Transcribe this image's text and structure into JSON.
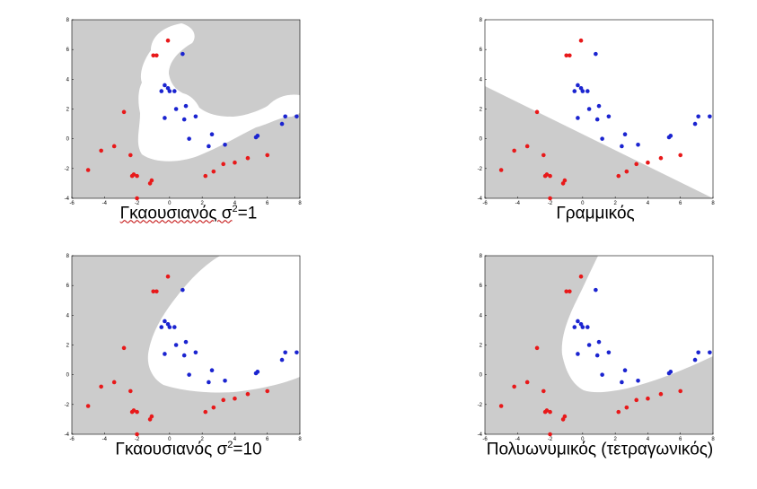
{
  "colors": {
    "region": "#cccccc",
    "class_a": "#e8191a",
    "class_b": "#1b24d0",
    "axis": "#000000"
  },
  "captions": [
    {
      "kernel": "Γκαουσιανός σ",
      "exp": "2",
      "rest": "=1"
    },
    {
      "kernel": "Γραμμικός",
      "exp": "",
      "rest": ""
    },
    {
      "kernel": "Γκαουσιανός σ",
      "exp": "2",
      "rest": "=10"
    },
    {
      "kernel": "Πολυωνυμικός (τετραγωνικός)",
      "exp": "",
      "rest": ""
    }
  ],
  "chart_data": [
    {
      "type": "scatter",
      "title": "",
      "xlabel": "",
      "ylabel": "",
      "xlim": [
        -6,
        8
      ],
      "ylim": [
        -4,
        8
      ],
      "xticks": [
        -6,
        -4,
        -2,
        0,
        2,
        4,
        6,
        8
      ],
      "yticks": [
        -4,
        -2,
        0,
        2,
        4,
        6,
        8
      ],
      "decision_boundary": "Gaussian kernel σ²=1: white region is the blue class",
      "series": [
        {
          "class": "red",
          "color": "#e8191a",
          "points": [
            [
              -0.1,
              6.6
            ],
            [
              -1.0,
              5.6
            ],
            [
              -0.8,
              5.6
            ],
            [
              -2.8,
              1.8
            ],
            [
              -5.0,
              -2.1
            ],
            [
              -4.2,
              -0.8
            ],
            [
              -3.4,
              -0.5
            ],
            [
              -2.4,
              -1.1
            ],
            [
              -2.0,
              -2.5
            ],
            [
              -2.2,
              -2.4
            ],
            [
              -2.3,
              -2.5
            ],
            [
              -1.1,
              -2.8
            ],
            [
              -1.2,
              -3.0
            ],
            [
              -2.0,
              -4.0
            ],
            [
              2.2,
              -2.5
            ],
            [
              2.7,
              -2.2
            ],
            [
              3.3,
              -1.7
            ],
            [
              4.0,
              -1.6
            ],
            [
              4.8,
              -1.3
            ],
            [
              6.0,
              -1.1
            ]
          ]
        },
        {
          "class": "blue",
          "color": "#1b24d0",
          "points": [
            [
              0.8,
              5.7
            ],
            [
              -0.3,
              3.6
            ],
            [
              -0.1,
              3.4
            ],
            [
              -0.5,
              3.2
            ],
            [
              0.3,
              3.2
            ],
            [
              0.0,
              3.2
            ],
            [
              1.0,
              2.2
            ],
            [
              0.4,
              2.0
            ],
            [
              -0.3,
              1.4
            ],
            [
              1.6,
              1.5
            ],
            [
              0.9,
              1.3
            ],
            [
              1.2,
              0.0
            ],
            [
              2.6,
              0.3
            ],
            [
              2.4,
              -0.5
            ],
            [
              3.4,
              -0.4
            ],
            [
              5.4,
              0.2
            ],
            [
              5.3,
              0.1
            ],
            [
              7.1,
              1.5
            ],
            [
              6.9,
              1.0
            ],
            [
              7.8,
              1.5
            ]
          ]
        }
      ]
    },
    {
      "type": "scatter",
      "title": "",
      "xlabel": "",
      "ylabel": "",
      "xlim": [
        -6,
        8
      ],
      "ylim": [
        -4,
        8
      ],
      "xticks": [
        -6,
        -4,
        -2,
        0,
        2,
        4,
        6,
        8
      ],
      "yticks": [
        -4,
        -2,
        0,
        2,
        4,
        6,
        8
      ],
      "decision_boundary": "Linear kernel: straight line, grey region below",
      "series": [
        {
          "class": "red",
          "color": "#e8191a",
          "points": [
            [
              -0.1,
              6.6
            ],
            [
              -1.0,
              5.6
            ],
            [
              -0.8,
              5.6
            ],
            [
              -2.8,
              1.8
            ],
            [
              -5.0,
              -2.1
            ],
            [
              -4.2,
              -0.8
            ],
            [
              -3.4,
              -0.5
            ],
            [
              -2.4,
              -1.1
            ],
            [
              -2.0,
              -2.5
            ],
            [
              -2.2,
              -2.4
            ],
            [
              -2.3,
              -2.5
            ],
            [
              -1.1,
              -2.8
            ],
            [
              -1.2,
              -3.0
            ],
            [
              -2.0,
              -4.0
            ],
            [
              2.2,
              -2.5
            ],
            [
              2.7,
              -2.2
            ],
            [
              3.3,
              -1.7
            ],
            [
              4.0,
              -1.6
            ],
            [
              4.8,
              -1.3
            ],
            [
              6.0,
              -1.1
            ]
          ]
        },
        {
          "class": "blue",
          "color": "#1b24d0",
          "points": [
            [
              0.8,
              5.7
            ],
            [
              -0.3,
              3.6
            ],
            [
              -0.1,
              3.4
            ],
            [
              -0.5,
              3.2
            ],
            [
              0.3,
              3.2
            ],
            [
              0.0,
              3.2
            ],
            [
              1.0,
              2.2
            ],
            [
              0.4,
              2.0
            ],
            [
              -0.3,
              1.4
            ],
            [
              1.6,
              1.5
            ],
            [
              0.9,
              1.3
            ],
            [
              1.2,
              0.0
            ],
            [
              2.6,
              0.3
            ],
            [
              2.4,
              -0.5
            ],
            [
              3.4,
              -0.4
            ],
            [
              5.4,
              0.2
            ],
            [
              5.3,
              0.1
            ],
            [
              7.1,
              1.5
            ],
            [
              6.9,
              1.0
            ],
            [
              7.8,
              1.5
            ]
          ]
        }
      ]
    },
    {
      "type": "scatter",
      "title": "",
      "xlabel": "",
      "ylabel": "",
      "xlim": [
        -6,
        8
      ],
      "ylim": [
        -4,
        8
      ],
      "xticks": [
        -6,
        -4,
        -2,
        0,
        2,
        4,
        6,
        8
      ],
      "yticks": [
        -4,
        -2,
        0,
        2,
        4,
        6,
        8
      ],
      "decision_boundary": "Gaussian kernel σ²=10: smooth curved boundary, white region is the blue class",
      "series": [
        {
          "class": "red",
          "color": "#e8191a",
          "points": [
            [
              -0.1,
              6.6
            ],
            [
              -1.0,
              5.6
            ],
            [
              -0.8,
              5.6
            ],
            [
              -2.8,
              1.8
            ],
            [
              -5.0,
              -2.1
            ],
            [
              -4.2,
              -0.8
            ],
            [
              -3.4,
              -0.5
            ],
            [
              -2.4,
              -1.1
            ],
            [
              -2.0,
              -2.5
            ],
            [
              -2.2,
              -2.4
            ],
            [
              -2.3,
              -2.5
            ],
            [
              -1.1,
              -2.8
            ],
            [
              -1.2,
              -3.0
            ],
            [
              -2.0,
              -4.0
            ],
            [
              2.2,
              -2.5
            ],
            [
              2.7,
              -2.2
            ],
            [
              3.3,
              -1.7
            ],
            [
              4.0,
              -1.6
            ],
            [
              4.8,
              -1.3
            ],
            [
              6.0,
              -1.1
            ]
          ]
        },
        {
          "class": "blue",
          "color": "#1b24d0",
          "points": [
            [
              0.8,
              5.7
            ],
            [
              -0.3,
              3.6
            ],
            [
              -0.1,
              3.4
            ],
            [
              -0.5,
              3.2
            ],
            [
              0.3,
              3.2
            ],
            [
              0.0,
              3.2
            ],
            [
              1.0,
              2.2
            ],
            [
              0.4,
              2.0
            ],
            [
              -0.3,
              1.4
            ],
            [
              1.6,
              1.5
            ],
            [
              0.9,
              1.3
            ],
            [
              1.2,
              0.0
            ],
            [
              2.6,
              0.3
            ],
            [
              2.4,
              -0.5
            ],
            [
              3.4,
              -0.4
            ],
            [
              5.4,
              0.2
            ],
            [
              5.3,
              0.1
            ],
            [
              7.1,
              1.5
            ],
            [
              6.9,
              1.0
            ],
            [
              7.8,
              1.5
            ]
          ]
        }
      ]
    },
    {
      "type": "scatter",
      "title": "",
      "xlabel": "",
      "ylabel": "",
      "xlim": [
        -6,
        8
      ],
      "ylim": [
        -4,
        8
      ],
      "xticks": [
        -6,
        -4,
        -2,
        0,
        2,
        4,
        6,
        8
      ],
      "yticks": [
        -4,
        -2,
        0,
        2,
        4,
        6,
        8
      ],
      "decision_boundary": "Polynomial (quadratic) kernel: parabola-like boundary, white region is the blue class",
      "series": [
        {
          "class": "red",
          "color": "#e8191a",
          "points": [
            [
              -0.1,
              6.6
            ],
            [
              -1.0,
              5.6
            ],
            [
              -0.8,
              5.6
            ],
            [
              -2.8,
              1.8
            ],
            [
              -5.0,
              -2.1
            ],
            [
              -4.2,
              -0.8
            ],
            [
              -3.4,
              -0.5
            ],
            [
              -2.4,
              -1.1
            ],
            [
              -2.0,
              -2.5
            ],
            [
              -2.2,
              -2.4
            ],
            [
              -2.3,
              -2.5
            ],
            [
              -1.1,
              -2.8
            ],
            [
              -1.2,
              -3.0
            ],
            [
              -2.0,
              -4.0
            ],
            [
              2.2,
              -2.5
            ],
            [
              2.7,
              -2.2
            ],
            [
              3.3,
              -1.7
            ],
            [
              4.0,
              -1.6
            ],
            [
              4.8,
              -1.3
            ],
            [
              6.0,
              -1.1
            ]
          ]
        },
        {
          "class": "blue",
          "color": "#1b24d0",
          "points": [
            [
              0.8,
              5.7
            ],
            [
              -0.3,
              3.6
            ],
            [
              -0.1,
              3.4
            ],
            [
              -0.5,
              3.2
            ],
            [
              0.3,
              3.2
            ],
            [
              0.0,
              3.2
            ],
            [
              1.0,
              2.2
            ],
            [
              0.4,
              2.0
            ],
            [
              -0.3,
              1.4
            ],
            [
              1.6,
              1.5
            ],
            [
              0.9,
              1.3
            ],
            [
              1.2,
              0.0
            ],
            [
              2.6,
              0.3
            ],
            [
              2.4,
              -0.5
            ],
            [
              3.4,
              -0.4
            ],
            [
              5.4,
              0.2
            ],
            [
              5.3,
              0.1
            ],
            [
              7.1,
              1.5
            ],
            [
              6.9,
              1.0
            ],
            [
              7.8,
              1.5
            ]
          ]
        }
      ]
    }
  ]
}
